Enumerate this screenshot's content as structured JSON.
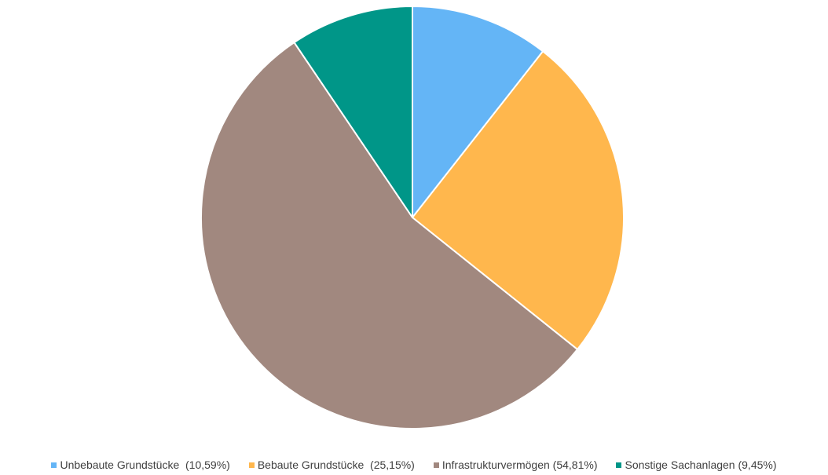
{
  "chart_data": {
    "type": "pie",
    "title": "",
    "start_angle_deg": 0,
    "direction": "clockwise",
    "legend_position": "bottom",
    "slices": [
      {
        "label": "Unbebaute Grundstücke  (10,59%)",
        "value": 10.59,
        "color": "#64b5f6"
      },
      {
        "label": "Bebaute Grundstücke  (25,15%)",
        "value": 25.15,
        "color": "#ffb74d"
      },
      {
        "label": "Infrastrukturvermögen (54,81%)",
        "value": 54.81,
        "color": "#a1887f"
      },
      {
        "label": "Sonstige Sachanlagen (9,45%)",
        "value": 9.45,
        "color": "#009688"
      }
    ]
  }
}
